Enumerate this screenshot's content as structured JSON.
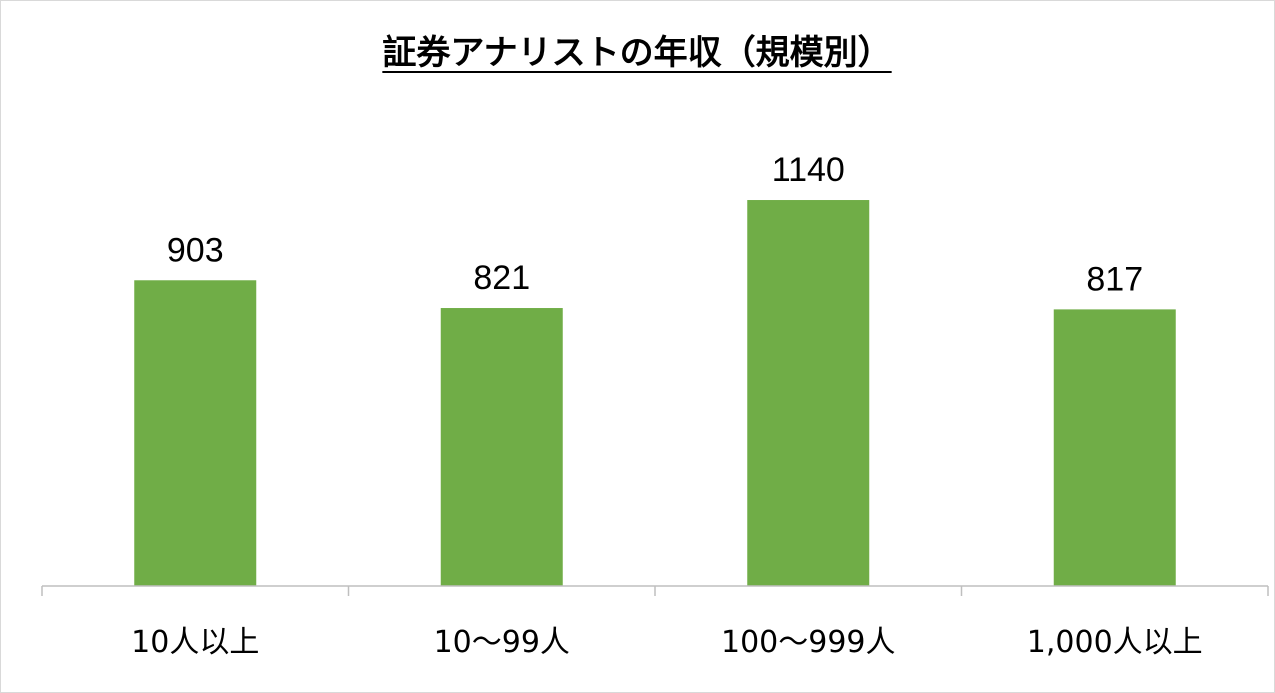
{
  "chart_data": {
    "type": "bar",
    "title": "証券アナリストの年収（規模別）",
    "categories": [
      "10人以上",
      "10〜99人",
      "100〜999人",
      "1,000人以上"
    ],
    "values": [
      903,
      821,
      1140,
      817
    ],
    "data_labels": [
      "903",
      "821",
      "1140",
      "817"
    ],
    "xlabel": "",
    "ylabel": "",
    "ylim": [
      0,
      1400
    ],
    "grid": false,
    "legend": "none",
    "bar_color": "#70ad47"
  }
}
